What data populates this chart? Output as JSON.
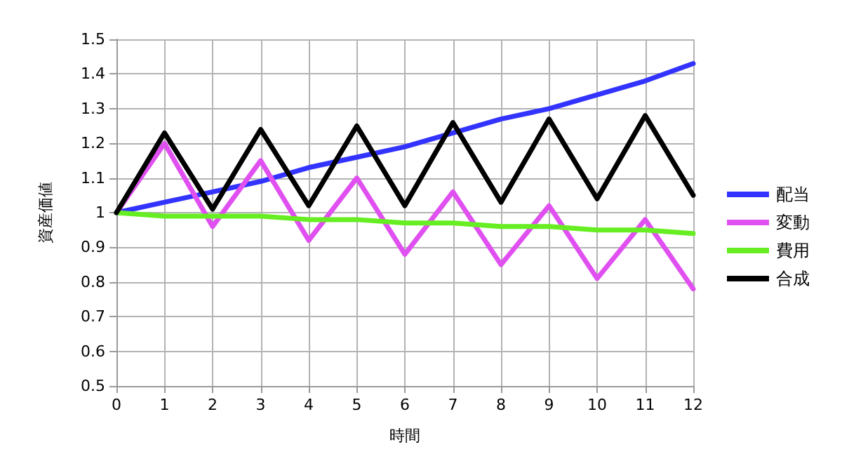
{
  "chart_data": {
    "type": "line",
    "xlabel": "時間",
    "ylabel": "資産価値",
    "x": [
      0,
      1,
      2,
      3,
      4,
      5,
      6,
      7,
      8,
      9,
      10,
      11,
      12
    ],
    "series": [
      {
        "name": "配当",
        "color": "#3333ff",
        "values": [
          1,
          1.03,
          1.06,
          1.09,
          1.13,
          1.16,
          1.19,
          1.23,
          1.27,
          1.3,
          1.34,
          1.38,
          1.43
        ]
      },
      {
        "name": "変動",
        "color": "#e050f0",
        "values": [
          1,
          1.2,
          0.96,
          1.15,
          0.92,
          1.1,
          0.88,
          1.06,
          0.85,
          1.02,
          0.81,
          0.98,
          0.78
        ]
      },
      {
        "name": "費用",
        "color": "#66ee22",
        "values": [
          1,
          0.99,
          0.99,
          0.99,
          0.98,
          0.98,
          0.97,
          0.97,
          0.96,
          0.96,
          0.95,
          0.95,
          0.94
        ]
      },
      {
        "name": "合成",
        "color": "#000000",
        "values": [
          1,
          1.23,
          1.01,
          1.24,
          1.02,
          1.25,
          1.02,
          1.26,
          1.03,
          1.27,
          1.04,
          1.28,
          1.05
        ]
      }
    ],
    "xlim": [
      0,
      12
    ],
    "xticks": [
      0,
      1,
      2,
      3,
      4,
      5,
      6,
      7,
      8,
      9,
      10,
      11,
      12
    ],
    "ylim": [
      0.5,
      1.5
    ],
    "yticks": [
      0.5,
      0.6,
      0.7,
      0.8,
      0.9,
      1,
      1.1,
      1.2,
      1.3,
      1.4,
      1.5
    ],
    "grid": true,
    "legend": "right",
    "marker": "none",
    "line_style": "solid"
  }
}
